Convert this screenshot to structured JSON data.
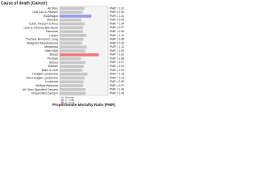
{
  "chart_data": {
    "type": "bar",
    "orientation": "horizontal",
    "title": "Cause of death (Cancer)",
    "xlabel": "Proportionate Mortality Ratio (PMR)",
    "categories": [
      "All Sites",
      "Oral Cav & Pharynx",
      "Esophagus",
      "Stomach",
      "Colon, Rectum & Anus",
      "Liver & Intrahep Bile Ducts",
      "Pancreas",
      "Larynx",
      "Trachea, Bronchus, Lung",
      "Malignant Mesothelioma",
      "Melanoma",
      "Other Skin",
      "Breast",
      "Prostate",
      "Kidney",
      "Bladder",
      "Brain & CNS",
      "Hodgkin Lymphoma",
      "Non-Hodgkin Lymphoma",
      "Leukemia",
      "Multiple Myeloma",
      "All Other Specified Cancers",
      "Unspecified Cancers"
    ],
    "values": [
      1.02,
      0.95,
      1.31,
      0.9,
      1.04,
      0.97,
      0.96,
      1.1,
      0.98,
      0.93,
      1.12,
      1.05,
      1.62,
      0.88,
      1.07,
      1.0,
      0.94,
      1.15,
      1.03,
      0.99,
      0.97,
      1.06,
      1.08
    ],
    "value_labels": [
      "PMR = 1.02",
      "PMR = 0.95",
      "PMR = 1.31",
      "PMR = 0.90",
      "PMR = 1.04",
      "PMR = 0.97",
      "PMR = 0.96",
      "PMR = 1.10",
      "PMR = 0.98",
      "PMR = 0.93",
      "PMR = 1.12",
      "PMR = 1.05",
      "PMR = 1.62",
      "PMR = 0.88",
      "PMR = 1.07",
      "PMR = 1.00",
      "PMR = 0.94",
      "PMR = 1.15",
      "PMR = 1.03",
      "PMR = 0.99",
      "PMR = 0.97",
      "PMR = 1.06",
      "PMR = 1.08"
    ],
    "colors": [
      "#c8c8c8",
      "#c8c8c8",
      "#9a9af0",
      "#c8c8c8",
      "#c8c8c8",
      "#c8c8c8",
      "#c8c8c8",
      "#c8c8c8",
      "#c8c8c8",
      "#c8c8c8",
      "#c8c8c8",
      "#c8c8c8",
      "#f07878",
      "#c8c8c8",
      "#c8c8c8",
      "#c8c8c8",
      "#c8c8c8",
      "#c8c8c8",
      "#c8c8c8",
      "#c8c8c8",
      "#c8c8c8",
      "#c8c8c8",
      "#c8c8c8"
    ],
    "xlim": [
      0,
      2
    ],
    "legend": [
      {
        "name": "Non-sig",
        "color": "#c8c8c8"
      },
      {
        "name": "p < 0.05",
        "color": "#9a9af0"
      },
      {
        "name": "p < 0.01",
        "color": "#f07878"
      }
    ]
  }
}
